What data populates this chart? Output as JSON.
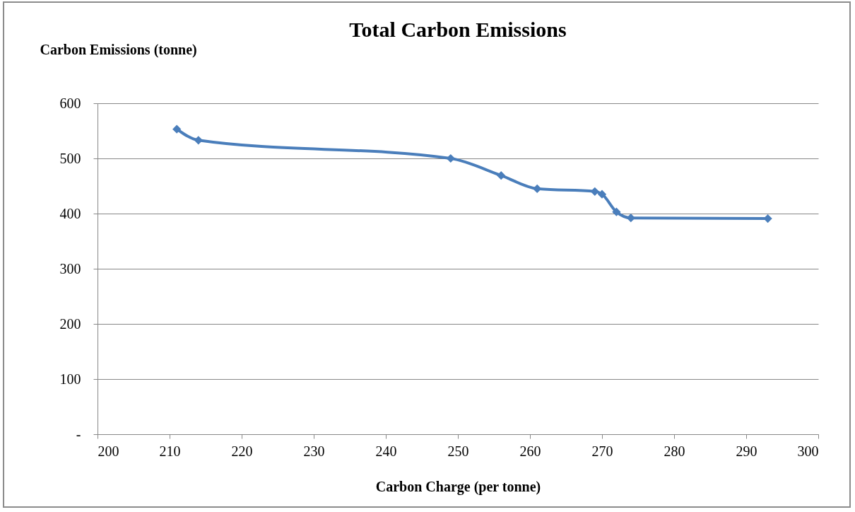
{
  "chart_data": {
    "type": "line",
    "title": "Total Carbon Emissions",
    "xlabel": "Carbon Charge (per tonne)",
    "ylabel": "Carbon Emissions (tonne)",
    "x": [
      211,
      214,
      249,
      256,
      261,
      269,
      270,
      272,
      274,
      293
    ],
    "series": [
      {
        "color": "#4a7ebb",
        "values": [
          553,
          533,
          500,
          469,
          445,
          440,
          435,
          403,
          392,
          391
        ]
      }
    ],
    "xlim": [
      200,
      300
    ],
    "xticks": [
      200,
      210,
      220,
      230,
      240,
      250,
      260,
      270,
      280,
      290,
      300
    ],
    "ylim": [
      0,
      600
    ],
    "yticks": [
      {
        "value": 0,
        "label": "-"
      },
      100,
      200,
      300,
      400,
      500,
      600
    ],
    "grid": "y",
    "marker": "diamond",
    "line_style": "solid"
  }
}
